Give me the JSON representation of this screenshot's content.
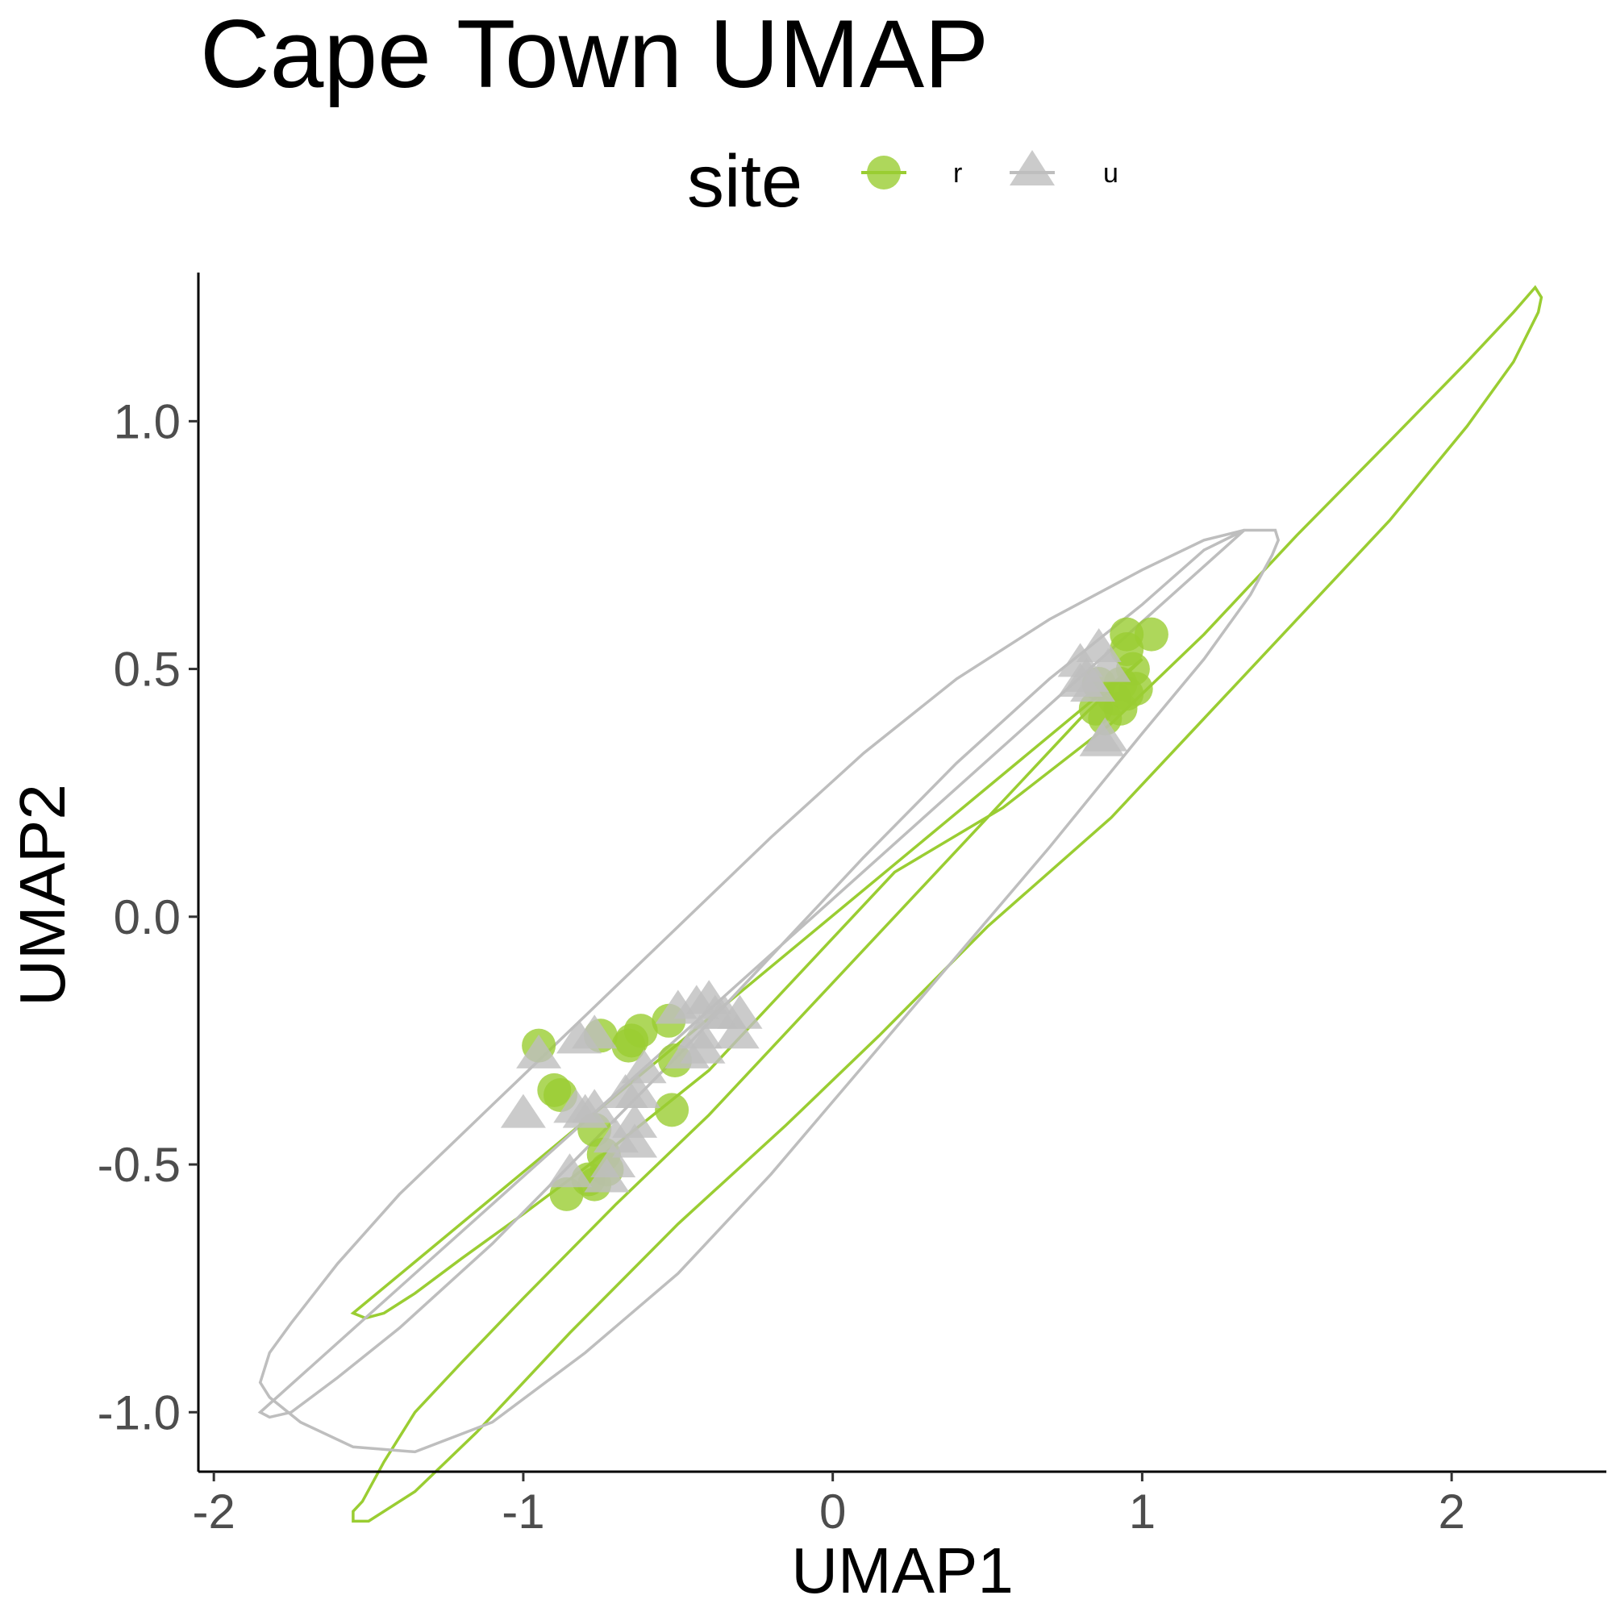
{
  "chart_data": {
    "type": "scatter",
    "title": "Cape Town UMAP",
    "xlabel": "UMAP1",
    "ylabel": "UMAP2",
    "xlim": [
      -2.05,
      2.5
    ],
    "ylim": [
      -1.12,
      1.3
    ],
    "x_ticks": [
      -2,
      -1,
      0,
      1,
      2
    ],
    "x_tick_labels": [
      "-2",
      "-1",
      "0",
      "1",
      "2"
    ],
    "y_ticks": [
      -1.0,
      -0.5,
      0.0,
      0.5,
      1.0
    ],
    "y_tick_labels": [
      "-1.0",
      "-0.5",
      "0.0",
      "0.5",
      "1.0"
    ],
    "grid": false,
    "legend": {
      "title": "site",
      "placement": "top",
      "entries": [
        {
          "label": "r",
          "shape": "circle",
          "color": "#9ACD32"
        },
        {
          "label": "u",
          "shape": "triangle",
          "color": "#BEBEBE"
        }
      ]
    },
    "series": [
      {
        "name": "r",
        "shape": "circle",
        "color": "#9ACD32",
        "points": [
          [
            -0.95,
            -0.26
          ],
          [
            -0.75,
            -0.24
          ],
          [
            -0.62,
            -0.23
          ],
          [
            -0.65,
            -0.25
          ],
          [
            -0.66,
            -0.26
          ],
          [
            -0.53,
            -0.21
          ],
          [
            -0.51,
            -0.29
          ],
          [
            -0.9,
            -0.35
          ],
          [
            -0.88,
            -0.36
          ],
          [
            -0.52,
            -0.39
          ],
          [
            -0.77,
            -0.43
          ],
          [
            -0.74,
            -0.48
          ],
          [
            -0.73,
            -0.51
          ],
          [
            -0.79,
            -0.53
          ],
          [
            -0.77,
            -0.54
          ],
          [
            -0.86,
            -0.56
          ],
          [
            0.95,
            0.57
          ],
          [
            1.03,
            0.57
          ],
          [
            0.95,
            0.54
          ],
          [
            0.97,
            0.5
          ],
          [
            0.86,
            0.47
          ],
          [
            0.93,
            0.47
          ],
          [
            0.98,
            0.46
          ],
          [
            0.91,
            0.44
          ],
          [
            0.93,
            0.42
          ],
          [
            0.85,
            0.42
          ],
          [
            0.88,
            0.4
          ],
          [
            0.95,
            0.45
          ]
        ]
      },
      {
        "name": "u",
        "shape": "triangle",
        "color": "#BEBEBE",
        "points": [
          [
            -0.95,
            -0.28
          ],
          [
            -1.0,
            -0.4
          ],
          [
            -0.82,
            -0.25
          ],
          [
            -0.77,
            -0.24
          ],
          [
            -0.5,
            -0.19
          ],
          [
            -0.44,
            -0.18
          ],
          [
            -0.4,
            -0.17
          ],
          [
            -0.38,
            -0.2
          ],
          [
            -0.35,
            -0.2
          ],
          [
            -0.3,
            -0.2
          ],
          [
            -0.31,
            -0.24
          ],
          [
            -0.43,
            -0.24
          ],
          [
            -0.47,
            -0.28
          ],
          [
            -0.42,
            -0.27
          ],
          [
            -0.61,
            -0.31
          ],
          [
            -0.63,
            -0.36
          ],
          [
            -0.67,
            -0.36
          ],
          [
            -0.83,
            -0.39
          ],
          [
            -0.8,
            -0.4
          ],
          [
            -0.77,
            -0.39
          ],
          [
            -0.64,
            -0.42
          ],
          [
            -0.7,
            -0.45
          ],
          [
            -0.64,
            -0.46
          ],
          [
            -0.71,
            -0.5
          ],
          [
            -0.85,
            -0.52
          ],
          [
            -0.73,
            -0.53
          ],
          [
            0.8,
            0.51
          ],
          [
            0.82,
            0.48
          ],
          [
            0.86,
            0.54
          ],
          [
            0.89,
            0.5
          ],
          [
            0.84,
            0.46
          ],
          [
            0.8,
            0.47
          ],
          [
            0.87,
            0.35
          ],
          [
            0.88,
            0.36
          ]
        ]
      }
    ],
    "ellipses": [
      {
        "series": "r",
        "color": "#9ACD32",
        "points": [
          [
            -1.55,
            -0.8
          ],
          [
            -1.51,
            -0.81
          ],
          [
            -1.45,
            -0.8
          ],
          [
            -1.35,
            -0.76
          ],
          [
            -1.2,
            -0.69
          ],
          [
            -1.0,
            -0.6
          ],
          [
            -0.7,
            -0.46
          ],
          [
            -0.4,
            -0.31
          ],
          [
            -0.1,
            -0.11
          ],
          [
            0.2,
            0.09
          ],
          [
            0.55,
            0.22
          ],
          [
            0.9,
            0.39
          ],
          [
            1.2,
            0.57
          ],
          [
            1.5,
            0.77
          ],
          [
            1.8,
            0.96
          ],
          [
            2.05,
            1.12
          ],
          [
            2.2,
            1.22
          ],
          [
            2.27,
            1.27
          ],
          [
            2.29,
            1.25
          ],
          [
            2.28,
            1.22
          ],
          [
            2.2,
            1.12
          ],
          [
            2.05,
            0.99
          ],
          [
            1.8,
            0.8
          ],
          [
            1.5,
            0.6
          ],
          [
            1.2,
            0.4
          ],
          [
            0.9,
            0.2
          ],
          [
            0.5,
            -0.02
          ],
          [
            0.15,
            -0.24
          ],
          [
            -0.15,
            -0.42
          ],
          [
            -0.5,
            -0.62
          ],
          [
            -0.85,
            -0.84
          ],
          [
            -1.15,
            -1.04
          ],
          [
            -1.35,
            -1.16
          ],
          [
            -1.5,
            -1.22
          ],
          [
            -1.55,
            -1.22
          ],
          [
            -1.55,
            -1.2
          ],
          [
            -1.52,
            -1.18
          ],
          [
            -1.45,
            -1.1
          ],
          [
            -1.35,
            -1.0
          ],
          [
            -1.2,
            -0.9
          ],
          [
            -1.0,
            -0.77
          ],
          [
            -0.7,
            -0.58
          ],
          [
            -0.4,
            -0.4
          ],
          [
            -0.1,
            -0.2
          ],
          [
            0.2,
            0.0
          ],
          [
            0.5,
            0.2
          ],
          [
            0.8,
            0.4
          ],
          [
            1.0,
            0.52
          ]
        ]
      },
      {
        "series": "u",
        "color": "#BEBEBE",
        "points": [
          [
            -1.85,
            -1.0
          ],
          [
            -1.82,
            -1.01
          ],
          [
            -1.75,
            -1.0
          ],
          [
            -1.6,
            -0.93
          ],
          [
            -1.4,
            -0.83
          ],
          [
            -1.1,
            -0.66
          ],
          [
            -0.8,
            -0.47
          ],
          [
            -0.5,
            -0.28
          ],
          [
            -0.2,
            -0.08
          ],
          [
            0.1,
            0.12
          ],
          [
            0.4,
            0.31
          ],
          [
            0.7,
            0.48
          ],
          [
            1.0,
            0.63
          ],
          [
            1.2,
            0.74
          ],
          [
            1.33,
            0.78
          ],
          [
            1.4,
            0.78
          ],
          [
            1.43,
            0.78
          ],
          [
            1.44,
            0.76
          ],
          [
            1.42,
            0.73
          ],
          [
            1.35,
            0.65
          ],
          [
            1.2,
            0.52
          ],
          [
            1.0,
            0.37
          ],
          [
            0.7,
            0.14
          ],
          [
            0.4,
            -0.08
          ],
          [
            0.1,
            -0.3
          ],
          [
            -0.2,
            -0.52
          ],
          [
            -0.5,
            -0.72
          ],
          [
            -0.8,
            -0.88
          ],
          [
            -1.1,
            -1.02
          ],
          [
            -1.35,
            -1.08
          ],
          [
            -1.55,
            -1.07
          ],
          [
            -1.72,
            -1.02
          ],
          [
            -1.82,
            -0.97
          ],
          [
            -1.85,
            -0.94
          ],
          [
            -1.82,
            -0.88
          ],
          [
            -1.75,
            -0.82
          ],
          [
            -1.6,
            -0.7
          ],
          [
            -1.4,
            -0.56
          ],
          [
            -1.1,
            -0.38
          ],
          [
            -0.8,
            -0.2
          ],
          [
            -0.5,
            -0.02
          ],
          [
            -0.2,
            0.16
          ],
          [
            0.1,
            0.33
          ],
          [
            0.4,
            0.48
          ],
          [
            0.7,
            0.6
          ],
          [
            1.0,
            0.7
          ],
          [
            1.2,
            0.76
          ],
          [
            1.33,
            0.78
          ]
        ]
      }
    ]
  }
}
